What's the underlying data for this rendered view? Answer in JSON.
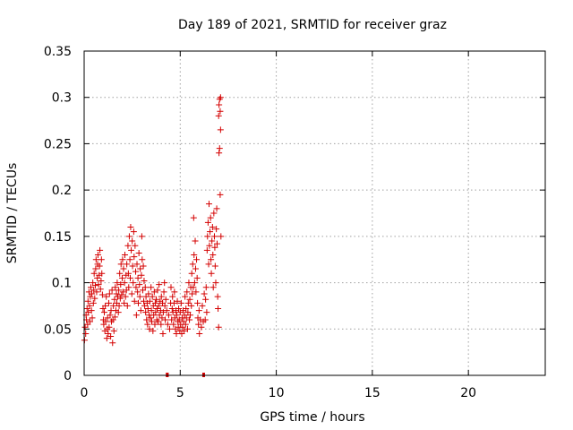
{
  "chart_data": {
    "type": "scatter",
    "title": "Day 189 of 2021, SRMTID for receiver graz",
    "xlabel": "GPS time / hours",
    "ylabel": "SRMTID / TECUs",
    "xlim": [
      0,
      24
    ],
    "ylim": [
      0,
      0.35
    ],
    "x_ticks": [
      0,
      5,
      10,
      15,
      20
    ],
    "x_tick_labels": [
      "0",
      "5",
      "10",
      "15",
      "20"
    ],
    "y_ticks": [
      0,
      0.05,
      0.1,
      0.15,
      0.2,
      0.25,
      0.3,
      0.35
    ],
    "y_tick_labels": [
      "0",
      "0.05",
      "0.1",
      "0.15",
      "0.2",
      "0.25",
      "0.3",
      "0.35"
    ],
    "grid": true,
    "marker": "+",
    "series": [
      {
        "name": "SRMTID",
        "color": "#d40000",
        "points": [
          [
            0.02,
            0.038
          ],
          [
            0.05,
            0.052
          ],
          [
            0.08,
            0.045
          ],
          [
            0.1,
            0.065
          ],
          [
            0.12,
            0.06
          ],
          [
            0.15,
            0.072
          ],
          [
            0.18,
            0.055
          ],
          [
            0.2,
            0.08
          ],
          [
            0.22,
            0.068
          ],
          [
            0.25,
            0.09
          ],
          [
            0.28,
            0.075
          ],
          [
            0.3,
            0.058
          ],
          [
            0.32,
            0.085
          ],
          [
            0.35,
            0.095
          ],
          [
            0.38,
            0.07
          ],
          [
            0.4,
            0.088
          ],
          [
            0.42,
            0.062
          ],
          [
            0.45,
            0.1
          ],
          [
            0.48,
            0.078
          ],
          [
            0.5,
            0.092
          ],
          [
            0.52,
            0.11
          ],
          [
            0.55,
            0.083
          ],
          [
            0.58,
            0.097
          ],
          [
            0.6,
            0.115
          ],
          [
            0.62,
            0.125
          ],
          [
            0.65,
            0.09
          ],
          [
            0.68,
            0.105
          ],
          [
            0.7,
            0.12
          ],
          [
            0.72,
            0.13
          ],
          [
            0.75,
            0.098
          ],
          [
            0.78,
            0.108
          ],
          [
            0.8,
            0.118
          ],
          [
            0.82,
            0.135
          ],
          [
            0.85,
            0.093
          ],
          [
            0.88,
            0.102
          ],
          [
            0.9,
            0.125
          ],
          [
            0.92,
            0.11
          ],
          [
            0.95,
            0.087
          ],
          [
            0.98,
            0.072
          ],
          [
            1.0,
            0.06
          ],
          [
            1.02,
            0.055
          ],
          [
            1.05,
            0.068
          ],
          [
            1.08,
            0.048
          ],
          [
            1.1,
            0.075
          ],
          [
            1.12,
            0.058
          ],
          [
            1.15,
            0.085
          ],
          [
            1.18,
            0.04
          ],
          [
            1.2,
            0.05
          ],
          [
            1.22,
            0.062
          ],
          [
            1.25,
            0.045
          ],
          [
            1.28,
            0.078
          ],
          [
            1.3,
            0.052
          ],
          [
            1.32,
            0.088
          ],
          [
            1.35,
            0.065
          ],
          [
            1.38,
            0.042
          ],
          [
            1.4,
            0.07
          ],
          [
            1.42,
            0.058
          ],
          [
            1.45,
            0.092
          ],
          [
            1.48,
            0.035
          ],
          [
            1.5,
            0.06
          ],
          [
            1.52,
            0.075
          ],
          [
            1.55,
            0.048
          ],
          [
            1.58,
            0.082
          ],
          [
            1.6,
            0.063
          ],
          [
            1.62,
            0.095
          ],
          [
            1.65,
            0.07
          ],
          [
            1.68,
            0.088
          ],
          [
            1.7,
            0.078
          ],
          [
            1.72,
            0.1
          ],
          [
            1.75,
            0.085
          ],
          [
            1.78,
            0.068
          ],
          [
            1.8,
            0.092
          ],
          [
            1.82,
            0.075
          ],
          [
            1.85,
            0.11
          ],
          [
            1.88,
            0.083
          ],
          [
            1.9,
            0.098
          ],
          [
            1.92,
            0.12
          ],
          [
            1.95,
            0.087
          ],
          [
            1.98,
            0.105
          ],
          [
            2.0,
            0.125
          ],
          [
            2.02,
            0.09
          ],
          [
            2.05,
            0.115
          ],
          [
            2.08,
            0.078
          ],
          [
            2.1,
            0.1
          ],
          [
            2.12,
            0.13
          ],
          [
            2.15,
            0.085
          ],
          [
            2.18,
            0.108
          ],
          [
            2.2,
            0.092
          ],
          [
            2.22,
            0.12
          ],
          [
            2.25,
            0.075
          ],
          [
            2.28,
            0.14
          ],
          [
            2.3,
            0.11
          ],
          [
            2.32,
            0.095
          ],
          [
            2.35,
            0.15
          ],
          [
            2.38,
            0.125
          ],
          [
            2.4,
            0.105
          ],
          [
            2.42,
            0.16
          ],
          [
            2.45,
            0.135
          ],
          [
            2.48,
            0.088
          ],
          [
            2.5,
            0.145
          ],
          [
            2.52,
            0.118
          ],
          [
            2.55,
            0.1
          ],
          [
            2.58,
            0.155
          ],
          [
            2.6,
            0.128
          ],
          [
            2.62,
            0.08
          ],
          [
            2.65,
            0.14
          ],
          [
            2.68,
            0.112
          ],
          [
            2.7,
            0.095
          ],
          [
            2.72,
            0.065
          ],
          [
            2.75,
            0.12
          ],
          [
            2.78,
            0.09
          ],
          [
            2.8,
            0.105
          ],
          [
            2.82,
            0.078
          ],
          [
            2.85,
            0.132
          ],
          [
            2.88,
            0.098
          ],
          [
            2.9,
            0.085
          ],
          [
            2.92,
            0.115
          ],
          [
            2.95,
            0.07
          ],
          [
            2.98,
            0.108
          ],
          [
            3.0,
            0.15
          ],
          [
            3.02,
            0.125
          ],
          [
            3.05,
            0.092
          ],
          [
            3.08,
            0.118
          ],
          [
            3.1,
            0.08
          ],
          [
            3.12,
            0.102
          ],
          [
            3.15,
            0.075
          ],
          [
            3.18,
            0.095
          ],
          [
            3.2,
            0.068
          ],
          [
            3.22,
            0.085
          ],
          [
            3.25,
            0.06
          ],
          [
            3.28,
            0.078
          ],
          [
            3.3,
            0.055
          ],
          [
            3.32,
            0.072
          ],
          [
            3.35,
            0.088
          ],
          [
            3.38,
            0.065
          ],
          [
            3.4,
            0.05
          ],
          [
            3.42,
            0.08
          ],
          [
            3.45,
            0.062
          ],
          [
            3.48,
            0.095
          ],
          [
            3.5,
            0.07
          ],
          [
            3.52,
            0.058
          ],
          [
            3.55,
            0.085
          ],
          [
            3.58,
            0.048
          ],
          [
            3.6,
            0.075
          ],
          [
            3.62,
            0.065
          ],
          [
            3.65,
            0.09
          ],
          [
            3.68,
            0.055
          ],
          [
            3.7,
            0.078
          ],
          [
            3.72,
            0.068
          ],
          [
            3.75,
            0.082
          ],
          [
            3.78,
            0.06
          ],
          [
            3.8,
            0.072
          ],
          [
            3.82,
            0.092
          ],
          [
            3.85,
            0.058
          ],
          [
            3.88,
            0.075
          ],
          [
            3.9,
            0.098
          ],
          [
            3.92,
            0.065
          ],
          [
            3.95,
            0.08
          ],
          [
            3.98,
            0.07
          ],
          [
            4.0,
            0.055
          ],
          [
            4.02,
            0.085
          ],
          [
            4.05,
            0.062
          ],
          [
            4.08,
            0.078
          ],
          [
            4.1,
            0.045
          ],
          [
            4.12,
            0.068
          ],
          [
            4.15,
            0.09
          ],
          [
            4.18,
            0.1
          ],
          [
            4.2,
            0.075
          ],
          [
            4.22,
            0.06
          ],
          [
            4.25,
            0.082
          ],
          [
            4.3,
            0.07
          ],
          [
            4.35,
            0.055
          ],
          [
            4.4,
            0.065
          ],
          [
            4.45,
            0.05
          ],
          [
            4.5,
            0.078
          ],
          [
            4.52,
            0.095
          ],
          [
            4.55,
            0.06
          ],
          [
            4.58,
            0.072
          ],
          [
            4.6,
            0.085
          ],
          [
            4.62,
            0.068
          ],
          [
            4.65,
            0.055
          ],
          [
            4.68,
            0.078
          ],
          [
            4.7,
            0.09
          ],
          [
            4.72,
            0.062
          ],
          [
            4.75,
            0.05
          ],
          [
            4.78,
            0.07
          ],
          [
            4.8,
            0.045
          ],
          [
            4.82,
            0.065
          ],
          [
            4.85,
            0.08
          ],
          [
            4.88,
            0.058
          ],
          [
            4.9,
            0.052
          ],
          [
            4.92,
            0.072
          ],
          [
            4.95,
            0.06
          ],
          [
            4.98,
            0.048
          ],
          [
            5.0,
            0.068
          ],
          [
            5.02,
            0.055
          ],
          [
            5.05,
            0.078
          ],
          [
            5.08,
            0.045
          ],
          [
            5.1,
            0.062
          ],
          [
            5.12,
            0.052
          ],
          [
            5.15,
            0.07
          ],
          [
            5.18,
            0.058
          ],
          [
            5.2,
            0.048
          ],
          [
            5.22,
            0.065
          ],
          [
            5.25,
            0.085
          ],
          [
            5.28,
            0.055
          ],
          [
            5.3,
            0.072
          ],
          [
            5.32,
            0.062
          ],
          [
            5.35,
            0.09
          ],
          [
            5.38,
            0.05
          ],
          [
            5.4,
            0.068
          ],
          [
            5.42,
            0.078
          ],
          [
            5.45,
            0.1
          ],
          [
            5.48,
            0.06
          ],
          [
            5.5,
            0.082
          ],
          [
            5.52,
            0.065
          ],
          [
            5.55,
            0.095
          ],
          [
            5.58,
            0.075
          ],
          [
            5.6,
            0.11
          ],
          [
            5.62,
            0.088
          ],
          [
            5.65,
            0.12
          ],
          [
            5.68,
            0.095
          ],
          [
            5.7,
            0.17
          ],
          [
            5.72,
            0.13
          ],
          [
            5.75,
            0.1
          ],
          [
            5.78,
            0.145
          ],
          [
            5.8,
            0.115
          ],
          [
            5.82,
            0.09
          ],
          [
            5.85,
            0.125
          ],
          [
            5.88,
            0.105
          ],
          [
            5.9,
            0.078
          ],
          [
            5.92,
            0.062
          ],
          [
            5.95,
            0.055
          ],
          [
            5.98,
            0.07
          ],
          [
            6.0,
            0.045
          ],
          [
            6.05,
            0.06
          ],
          [
            6.1,
            0.052
          ],
          [
            6.15,
            0.075
          ],
          [
            6.2,
            0.058
          ],
          [
            6.25,
            0.088
          ],
          [
            6.3,
            0.06
          ],
          [
            6.32,
            0.082
          ],
          [
            6.35,
            0.095
          ],
          [
            6.38,
            0.068
          ],
          [
            6.4,
            0.135
          ],
          [
            6.42,
            0.15
          ],
          [
            6.45,
            0.165
          ],
          [
            6.48,
            0.12
          ],
          [
            6.5,
            0.185
          ],
          [
            6.52,
            0.14
          ],
          [
            6.55,
            0.155
          ],
          [
            6.58,
            0.17
          ],
          [
            6.6,
            0.125
          ],
          [
            6.62,
            0.11
          ],
          [
            6.65,
            0.145
          ],
          [
            6.68,
            0.16
          ],
          [
            6.7,
            0.13
          ],
          [
            6.72,
            0.095
          ],
          [
            6.75,
            0.175
          ],
          [
            6.78,
            0.15
          ],
          [
            6.8,
            0.138
          ],
          [
            6.82,
            0.118
          ],
          [
            6.85,
            0.1
          ],
          [
            6.88,
            0.158
          ],
          [
            6.9,
            0.18
          ],
          [
            6.92,
            0.142
          ],
          [
            6.95,
            0.085
          ],
          [
            6.97,
            0.072
          ],
          [
            7.0,
            0.052
          ],
          [
            7.0,
            0.28
          ],
          [
            7.02,
            0.24
          ],
          [
            7.02,
            0.292
          ],
          [
            7.05,
            0.245
          ],
          [
            7.05,
            0.298
          ],
          [
            7.08,
            0.195
          ],
          [
            7.08,
            0.285
          ],
          [
            7.1,
            0.265
          ],
          [
            7.1,
            0.3
          ],
          [
            7.12,
            0.15
          ]
        ]
      }
    ],
    "zero_marks": [
      {
        "x_from": 4.25,
        "x_to": 4.4,
        "y": 0
      },
      {
        "x_from": 6.15,
        "x_to": 6.28,
        "y": 0
      }
    ]
  }
}
